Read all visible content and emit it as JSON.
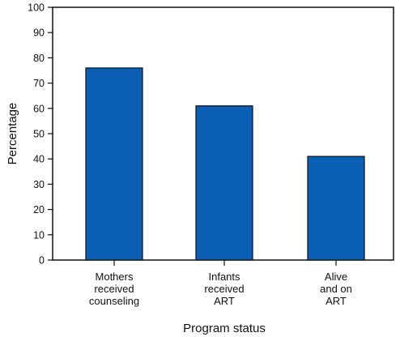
{
  "chart_data": {
    "type": "bar",
    "categories": [
      [
        "Mothers",
        "received",
        "counseling"
      ],
      [
        "Infants",
        "received",
        "ART"
      ],
      [
        "Alive",
        "and on",
        "ART"
      ]
    ],
    "values": [
      76,
      61,
      41
    ],
    "title": "",
    "xlabel": "Program status",
    "ylabel": "Percentage",
    "ylim": [
      0,
      100
    ],
    "yticks": [
      0,
      10,
      20,
      30,
      40,
      50,
      60,
      70,
      80,
      90,
      100
    ],
    "grid": false,
    "legend": "none",
    "colors": {
      "bar_fill": "#0a5fb4",
      "bar_stroke": "#111111",
      "axis": "#111111"
    }
  }
}
